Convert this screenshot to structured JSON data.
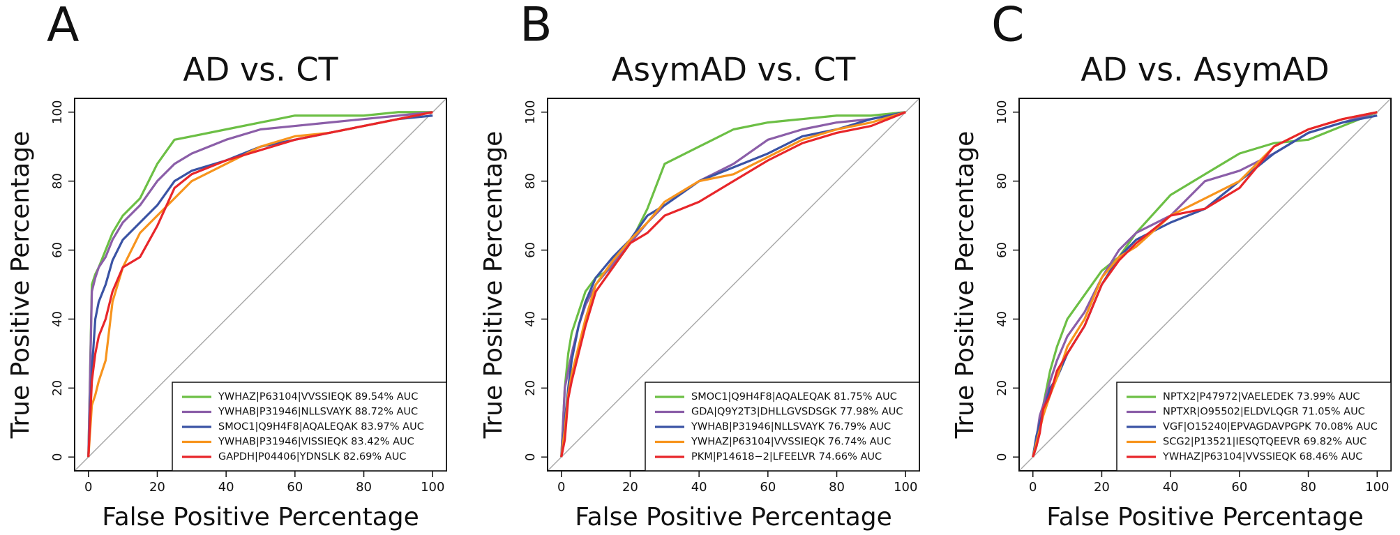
{
  "chart_data": [
    {
      "type": "line",
      "panel_label": "A",
      "title": "AD vs. CT",
      "x_label": "False Positive Percentage",
      "y_label": "True Positive Percentage",
      "xlim": [
        -4,
        104
      ],
      "ylim": [
        -4,
        104
      ],
      "xticks": [
        0,
        20,
        40,
        60,
        80,
        100
      ],
      "yticks": [
        0,
        20,
        40,
        60,
        80,
        100
      ],
      "legend": "lower right",
      "x": [
        0,
        1,
        2,
        3,
        5,
        7,
        10,
        15,
        20,
        25,
        30,
        40,
        50,
        60,
        70,
        80,
        90,
        100
      ],
      "series": [
        {
          "name": "YWHAZ|P63104|VVSSIEQK 89.54% AUC",
          "color": "#6cbf45",
          "values": [
            0,
            50,
            53,
            55,
            60,
            65,
            70,
            75,
            85,
            92,
            93,
            95,
            97,
            99,
            99,
            99,
            100,
            100
          ]
        },
        {
          "name": "YWHAB|P31946|NLLSVAYK 88.72% AUC",
          "color": "#8b5ea8",
          "values": [
            0,
            48,
            52,
            55,
            58,
            63,
            68,
            73,
            80,
            85,
            88,
            92,
            95,
            96,
            97,
            98,
            99,
            100
          ]
        },
        {
          "name": "SMOC1|Q9H4F8|AQALEQAK 83.97% AUC",
          "color": "#3a53a4",
          "values": [
            0,
            25,
            40,
            45,
            50,
            57,
            63,
            68,
            73,
            80,
            83,
            86,
            90,
            92,
            94,
            96,
            98,
            99
          ]
        },
        {
          "name": "YWHAB|P31946|VISSIEQK 83.42% AUC",
          "color": "#f7941d",
          "values": [
            0,
            15,
            18,
            22,
            28,
            45,
            55,
            65,
            70,
            75,
            80,
            85,
            90,
            93,
            94,
            96,
            98,
            100
          ]
        },
        {
          "name": "GAPDH|P04406|YDNSLK 82.69% AUC",
          "color": "#e8262a",
          "values": [
            0,
            22,
            30,
            35,
            40,
            48,
            55,
            58,
            67,
            78,
            82,
            86,
            89,
            92,
            94,
            96,
            98,
            100
          ]
        }
      ]
    },
    {
      "type": "line",
      "panel_label": "B",
      "title": "AsymAD vs. CT",
      "x_label": "False Positive Percentage",
      "y_label": "True Positive Percentage",
      "xlim": [
        -4,
        104
      ],
      "ylim": [
        -4,
        104
      ],
      "xticks": [
        0,
        20,
        40,
        60,
        80,
        100
      ],
      "yticks": [
        0,
        20,
        40,
        60,
        80,
        100
      ],
      "legend": "lower right",
      "x": [
        0,
        1,
        2,
        3,
        5,
        7,
        10,
        15,
        20,
        25,
        30,
        40,
        50,
        60,
        70,
        80,
        90,
        100
      ],
      "series": [
        {
          "name": "SMOC1|Q9H4F8|AQALEQAK 81.75% AUC",
          "color": "#6cbf45",
          "values": [
            0,
            20,
            30,
            36,
            42,
            48,
            52,
            55,
            62,
            72,
            85,
            90,
            95,
            97,
            98,
            99,
            99,
            100
          ]
        },
        {
          "name": "GDA|Q9Y2T3|DHLLGVSDSGK 77.98% AUC",
          "color": "#8b5ea8",
          "values": [
            0,
            20,
            25,
            30,
            38,
            44,
            50,
            56,
            62,
            68,
            73,
            80,
            85,
            92,
            95,
            97,
            98,
            100
          ]
        },
        {
          "name": "YWHAB|P31946|NLLSVAYK 76.79% AUC",
          "color": "#3a53a4",
          "values": [
            0,
            10,
            20,
            28,
            38,
            45,
            52,
            58,
            63,
            70,
            73,
            80,
            84,
            88,
            93,
            95,
            98,
            100
          ]
        },
        {
          "name": "YWHAZ|P63104|VVSSIEQK 76.74% AUC",
          "color": "#f7941d",
          "values": [
            0,
            8,
            18,
            24,
            32,
            40,
            50,
            57,
            63,
            68,
            74,
            80,
            82,
            87,
            92,
            95,
            97,
            100
          ]
        },
        {
          "name": "PKM|P14618−2|LFEELVR 74.66% AUC",
          "color": "#e8262a",
          "values": [
            0,
            5,
            17,
            22,
            30,
            38,
            48,
            55,
            62,
            65,
            70,
            74,
            80,
            86,
            91,
            94,
            96,
            100
          ]
        }
      ]
    },
    {
      "type": "line",
      "panel_label": "C",
      "title": "AD vs. AsymAD",
      "x_label": "False Positive Percentage",
      "y_label": "True Positive Percentage",
      "xlim": [
        -4,
        104
      ],
      "ylim": [
        -4,
        104
      ],
      "xticks": [
        0,
        20,
        40,
        60,
        80,
        100
      ],
      "yticks": [
        0,
        20,
        40,
        60,
        80,
        100
      ],
      "legend": "lower right",
      "x": [
        0,
        1,
        2,
        3,
        5,
        7,
        10,
        15,
        20,
        25,
        30,
        40,
        50,
        60,
        70,
        80,
        90,
        100
      ],
      "series": [
        {
          "name": "NPTX2|P47972|VAELEDEK 73.99% AUC",
          "color": "#6cbf45",
          "values": [
            0,
            3,
            8,
            15,
            25,
            32,
            40,
            47,
            54,
            58,
            65,
            76,
            82,
            88,
            91,
            92,
            96,
            100
          ]
        },
        {
          "name": "NPTXR|O95502|ELDVLQGR 71.05% AUC",
          "color": "#8b5ea8",
          "values": [
            0,
            5,
            12,
            15,
            22,
            28,
            35,
            42,
            52,
            60,
            65,
            70,
            80,
            83,
            88,
            94,
            97,
            100
          ]
        },
        {
          "name": "VGF|O15240|EPVAGDAVPGPK 70.08% AUC",
          "color": "#3a53a4",
          "values": [
            0,
            6,
            10,
            13,
            20,
            23,
            30,
            38,
            50,
            58,
            63,
            68,
            72,
            80,
            88,
            94,
            97,
            99
          ]
        },
        {
          "name": "SCG2|P13521|IESQTQEEVR 69.82% AUC",
          "color": "#f7941d",
          "values": [
            0,
            4,
            8,
            12,
            18,
            23,
            32,
            40,
            52,
            58,
            61,
            70,
            75,
            80,
            90,
            95,
            98,
            100
          ]
        },
        {
          "name": "YWHAZ|P63104|VVSSIEQK 68.46% AUC",
          "color": "#e8262a",
          "values": [
            0,
            3,
            7,
            14,
            18,
            25,
            30,
            38,
            50,
            57,
            62,
            70,
            72,
            78,
            90,
            95,
            98,
            100
          ]
        }
      ]
    }
  ]
}
